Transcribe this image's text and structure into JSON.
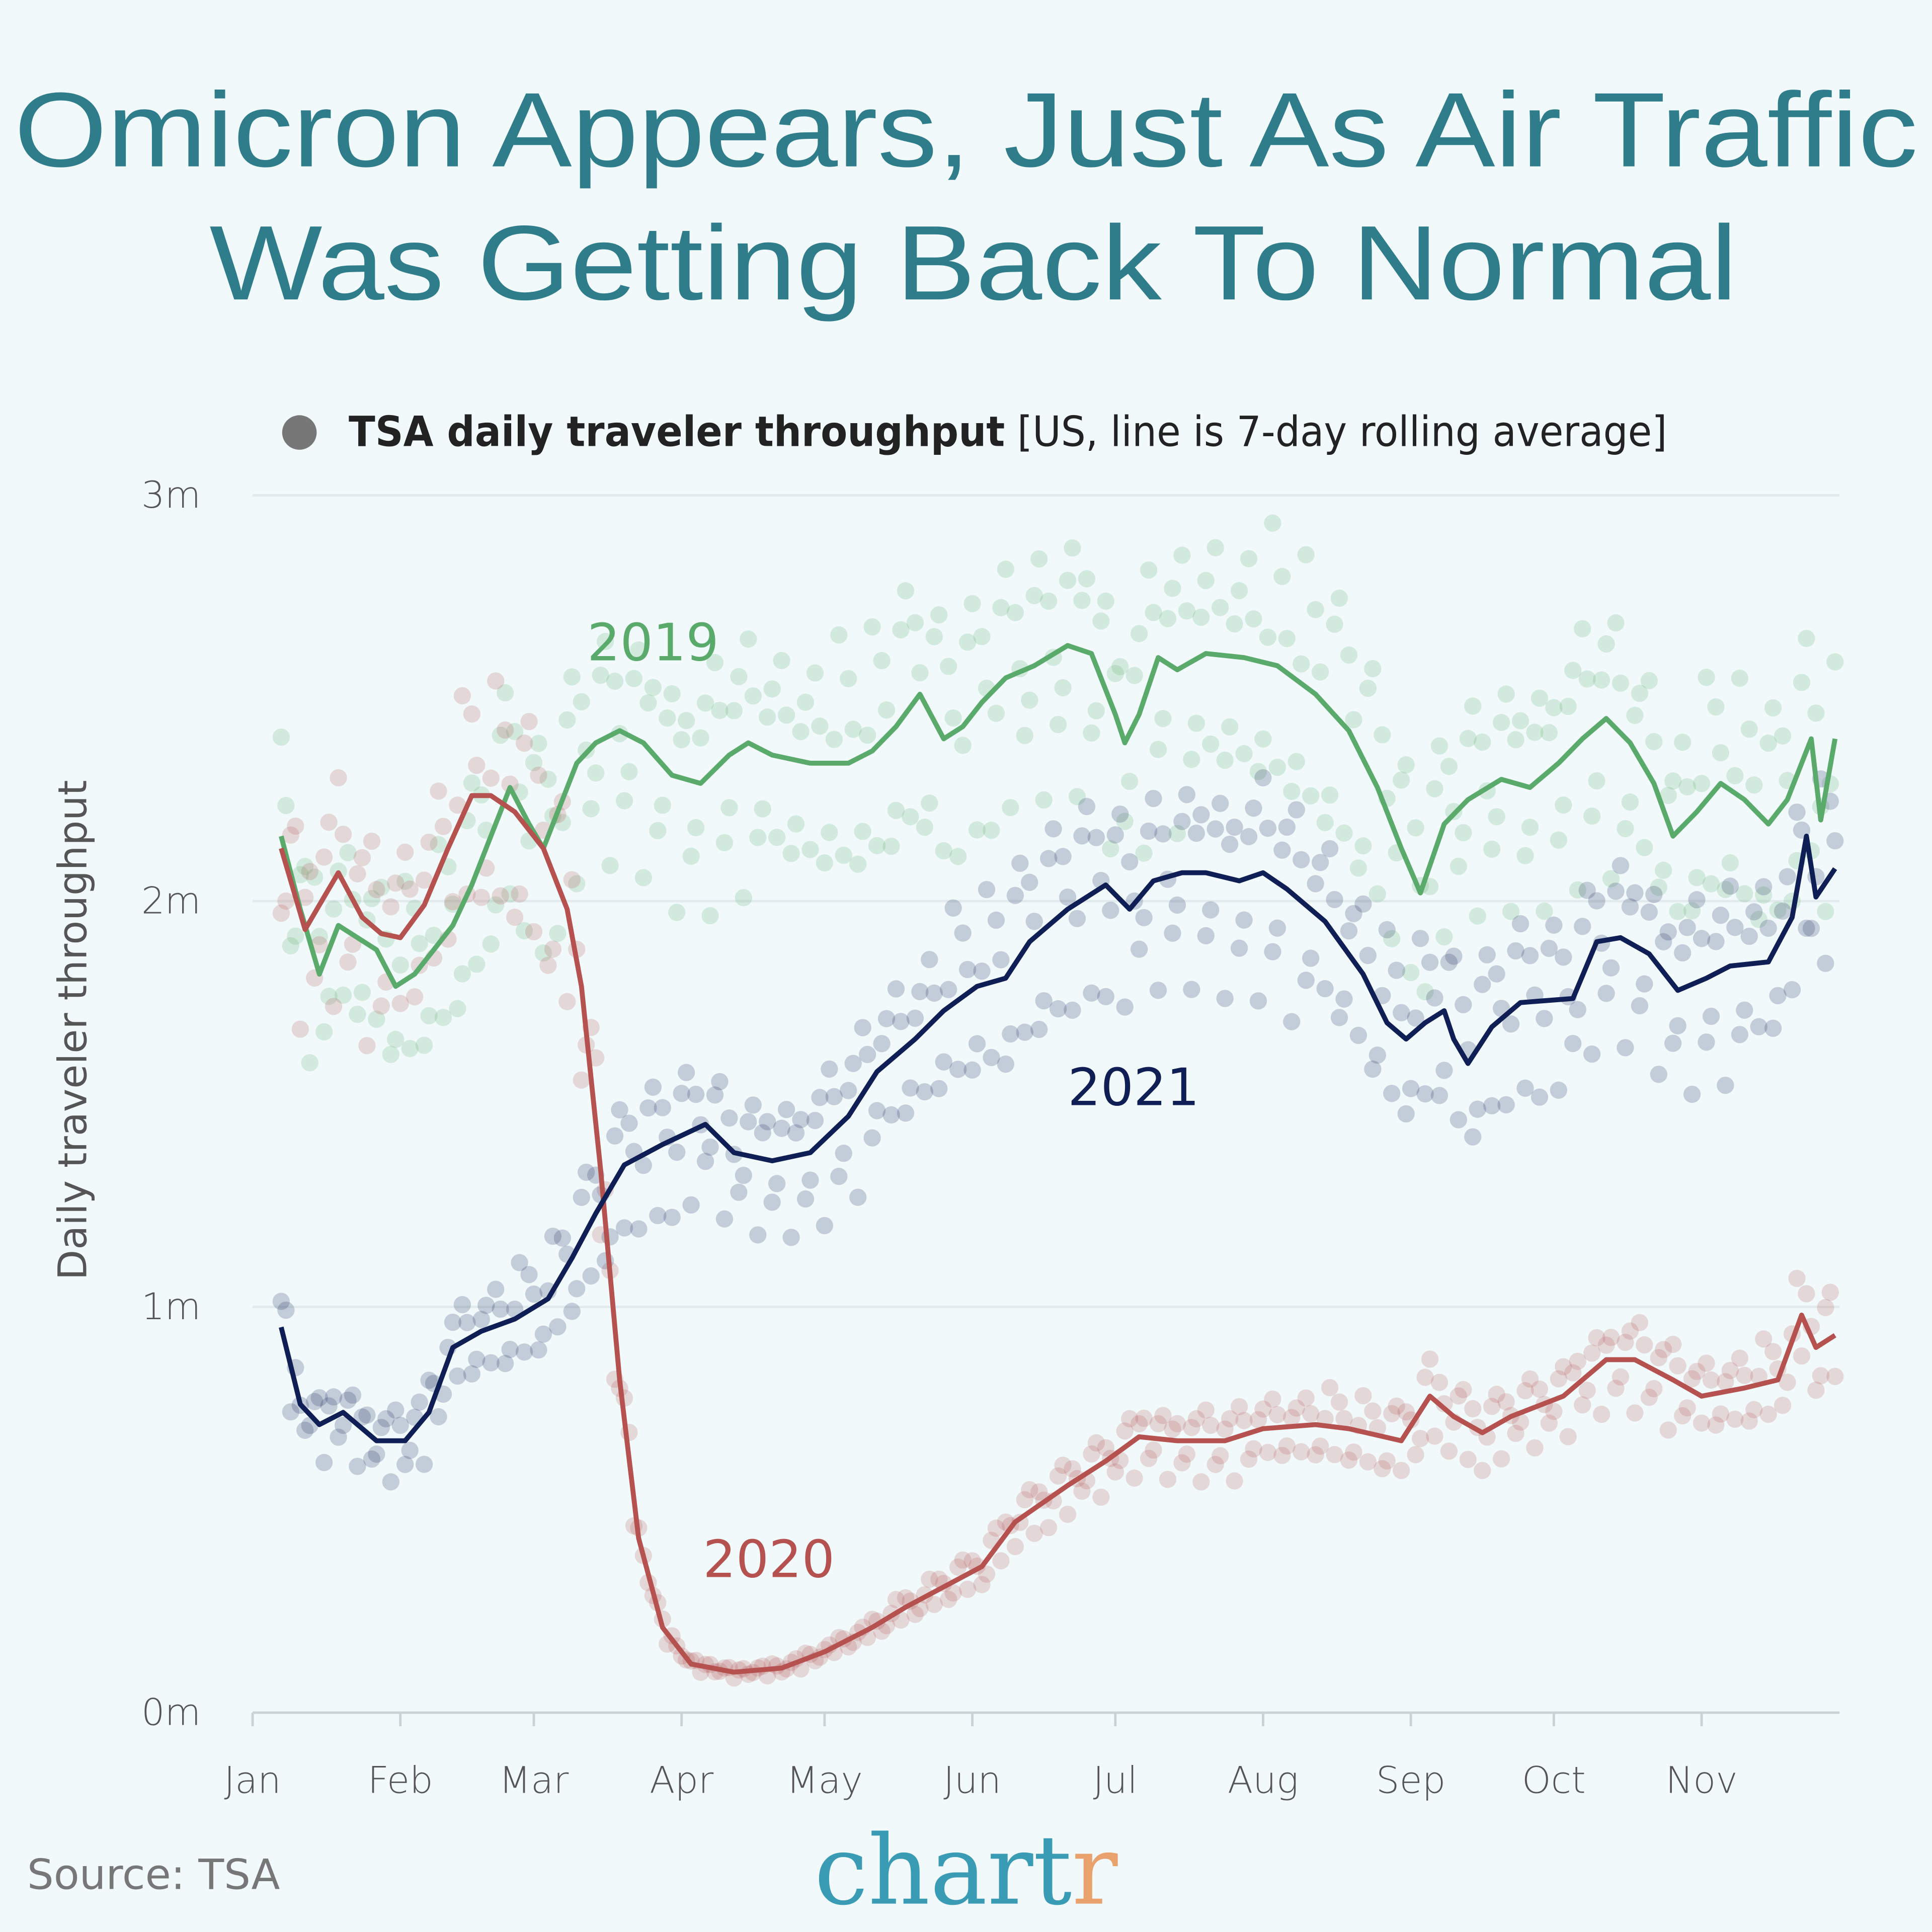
{
  "title": {
    "line1": "Omicron Appears, Just As Air Traffic",
    "line2": "Was Getting Back To Normal"
  },
  "source": "Source: TSA",
  "logo": {
    "text_main": "chart",
    "text_accent": "r",
    "color_main": "#3a9bb5",
    "color_accent": "#e9a26d"
  },
  "chart_data": {
    "type": "line",
    "legend": {
      "bold": "TSA daily traveler throughput",
      "normal": " [US, line is 7-day rolling average]",
      "marker_color": "#777777",
      "placement": "top"
    },
    "ylabel": "Daily traveler throughput",
    "xlabel": "",
    "ylim": [
      0,
      3
    ],
    "yticks": [
      {
        "value": 0,
        "label": "0m"
      },
      {
        "value": 1,
        "label": "1m"
      },
      {
        "value": 2,
        "label": "2m"
      },
      {
        "value": 3,
        "label": "3m"
      }
    ],
    "xticks": [
      {
        "date": "01-01",
        "label": "Jan"
      },
      {
        "date": "02-01",
        "label": "Feb"
      },
      {
        "date": "03-01",
        "label": "Mar"
      },
      {
        "date": "04-01",
        "label": "Apr"
      },
      {
        "date": "05-01",
        "label": "May"
      },
      {
        "date": "06-01",
        "label": "Jun"
      },
      {
        "date": "07-01",
        "label": "Jul"
      },
      {
        "date": "08-01",
        "label": "Aug"
      },
      {
        "date": "09-01",
        "label": "Sep"
      },
      {
        "date": "10-01",
        "label": "Oct"
      },
      {
        "date": "11-01",
        "label": "Nov"
      }
    ],
    "grid": true,
    "series": [
      {
        "name": "2019",
        "color": "#5aab6b",
        "x": [
          "01-07",
          "01-11",
          "01-15",
          "01-19",
          "01-23",
          "01-27",
          "01-31",
          "02-04",
          "02-08",
          "02-12",
          "02-16",
          "02-20",
          "02-24",
          "02-28",
          "03-03",
          "03-06",
          "03-10",
          "03-14",
          "03-19",
          "03-24",
          "03-30",
          "04-05",
          "04-11",
          "04-15",
          "04-20",
          "04-28",
          "05-06",
          "05-11",
          "05-16",
          "05-21",
          "05-26",
          "05-30",
          "06-03",
          "06-08",
          "06-14",
          "06-21",
          "06-26",
          "07-01",
          "07-03",
          "07-06",
          "07-10",
          "07-14",
          "07-20",
          "07-28",
          "08-04",
          "08-12",
          "08-19",
          "08-25",
          "08-30",
          "09-03",
          "09-08",
          "09-13",
          "09-20",
          "09-26",
          "10-02",
          "10-07",
          "10-12",
          "10-17",
          "10-22",
          "10-26",
          "10-31",
          "11-05",
          "11-10",
          "11-15",
          "11-19",
          "11-24",
          "11-26",
          "11-29"
        ],
        "y": [
          2.16,
          1.98,
          1.82,
          1.94,
          1.91,
          1.88,
          1.79,
          1.82,
          1.88,
          1.94,
          2.04,
          2.16,
          2.28,
          2.19,
          2.13,
          2.22,
          2.34,
          2.39,
          2.42,
          2.39,
          2.31,
          2.29,
          2.36,
          2.39,
          2.36,
          2.34,
          2.34,
          2.37,
          2.43,
          2.51,
          2.4,
          2.43,
          2.49,
          2.55,
          2.58,
          2.63,
          2.61,
          2.46,
          2.39,
          2.46,
          2.6,
          2.57,
          2.61,
          2.6,
          2.58,
          2.51,
          2.42,
          2.28,
          2.13,
          2.02,
          2.19,
          2.25,
          2.3,
          2.28,
          2.34,
          2.4,
          2.45,
          2.39,
          2.29,
          2.16,
          2.22,
          2.29,
          2.25,
          2.19,
          2.25,
          2.4,
          2.2,
          2.4
        ]
      },
      {
        "name": "2020",
        "color": "#b5524f",
        "x": [
          "01-07",
          "01-12",
          "01-16",
          "01-19",
          "01-24",
          "01-28",
          "02-01",
          "02-06",
          "02-11",
          "02-16",
          "02-20",
          "02-25",
          "03-03",
          "03-08",
          "03-11",
          "03-15",
          "03-19",
          "03-23",
          "03-28",
          "04-03",
          "04-12",
          "04-22",
          "05-01",
          "05-11",
          "05-18",
          "05-26",
          "06-03",
          "06-10",
          "06-21",
          "06-29",
          "07-06",
          "07-14",
          "07-24",
          "08-01",
          "08-12",
          "08-19",
          "08-30",
          "09-05",
          "09-10",
          "09-16",
          "09-22",
          "10-03",
          "10-12",
          "10-18",
          "10-26",
          "11-01",
          "11-10",
          "11-17",
          "11-22",
          "11-25",
          "11-29"
        ],
        "y": [
          2.13,
          1.93,
          2.01,
          2.07,
          1.96,
          1.92,
          1.91,
          1.99,
          2.13,
          2.26,
          2.26,
          2.22,
          2.13,
          1.98,
          1.79,
          1.34,
          0.82,
          0.43,
          0.21,
          0.12,
          0.1,
          0.11,
          0.15,
          0.21,
          0.26,
          0.31,
          0.36,
          0.47,
          0.56,
          0.62,
          0.68,
          0.67,
          0.67,
          0.7,
          0.71,
          0.7,
          0.67,
          0.78,
          0.73,
          0.69,
          0.73,
          0.78,
          0.87,
          0.87,
          0.82,
          0.78,
          0.8,
          0.82,
          0.98,
          0.9,
          0.93
        ]
      },
      {
        "name": "2021",
        "color": "#0f1f55",
        "x": [
          "01-07",
          "01-11",
          "01-15",
          "01-20",
          "01-27",
          "02-02",
          "02-07",
          "02-12",
          "02-18",
          "02-25",
          "03-04",
          "03-09",
          "03-14",
          "03-20",
          "03-28",
          "04-06",
          "04-12",
          "04-20",
          "04-28",
          "05-06",
          "05-12",
          "05-20",
          "05-26",
          "06-02",
          "06-08",
          "06-13",
          "06-21",
          "06-29",
          "07-04",
          "07-09",
          "07-15",
          "07-20",
          "07-27",
          "08-01",
          "08-06",
          "08-14",
          "08-22",
          "08-27",
          "08-31",
          "09-04",
          "09-08",
          "09-10",
          "09-13",
          "09-18",
          "09-24",
          "10-05",
          "10-10",
          "10-15",
          "10-21",
          "10-27",
          "11-02",
          "11-07",
          "11-15",
          "11-20",
          "11-23",
          "11-25",
          "11-29"
        ],
        "y": [
          0.95,
          0.76,
          0.71,
          0.74,
          0.67,
          0.67,
          0.74,
          0.9,
          0.94,
          0.97,
          1.02,
          1.12,
          1.23,
          1.35,
          1.4,
          1.45,
          1.38,
          1.36,
          1.38,
          1.47,
          1.58,
          1.66,
          1.73,
          1.79,
          1.81,
          1.9,
          1.98,
          2.04,
          1.98,
          2.05,
          2.07,
          2.07,
          2.05,
          2.07,
          2.03,
          1.95,
          1.82,
          1.7,
          1.66,
          1.7,
          1.73,
          1.66,
          1.6,
          1.69,
          1.75,
          1.76,
          1.9,
          1.91,
          1.87,
          1.78,
          1.81,
          1.84,
          1.85,
          1.96,
          2.16,
          2.01,
          2.08
        ]
      }
    ]
  }
}
